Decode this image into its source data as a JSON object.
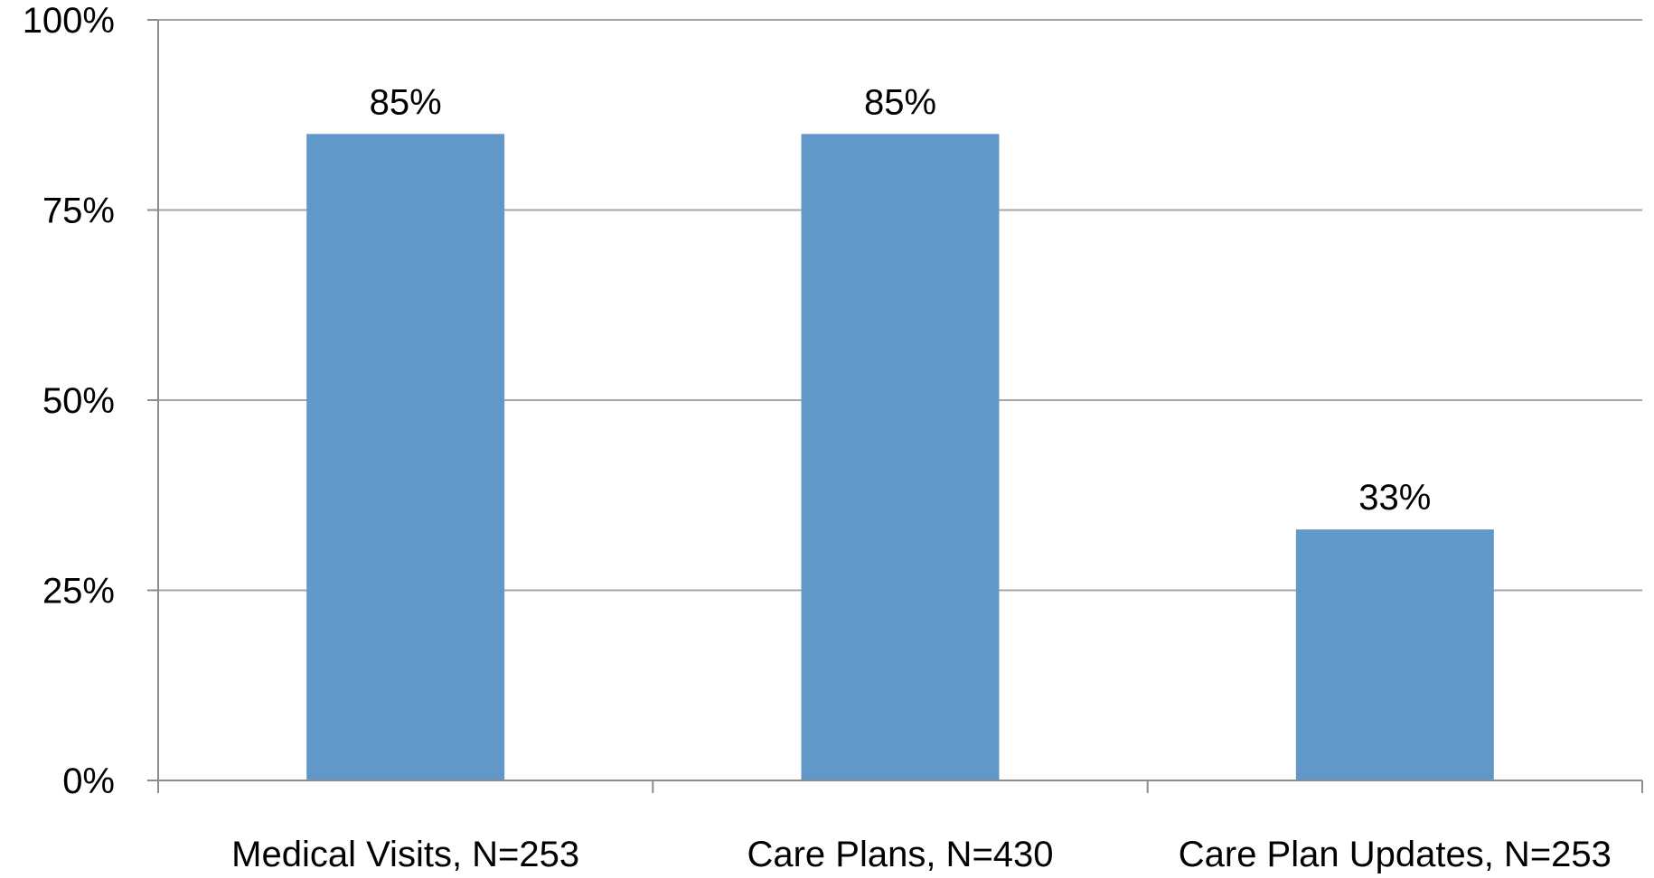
{
  "chart_data": {
    "type": "bar",
    "title": "",
    "xlabel": "",
    "ylabel": "",
    "categories": [
      "Medical Visits, N=253",
      "Care Plans, N=430",
      "Care Plan Updates, N=253"
    ],
    "values": [
      85,
      85,
      33
    ],
    "data_labels": [
      "85%",
      "85%",
      "33%"
    ],
    "ylim": [
      0,
      100
    ],
    "yticks": [
      0,
      25,
      50,
      75,
      100
    ],
    "ytick_labels": [
      "0%",
      "25%",
      "50%",
      "75%",
      "100%"
    ],
    "grid": true,
    "legend": "none",
    "colors": {
      "bar": "#6297c9",
      "grid": "#a6a6a6",
      "axis": "#8c8c8c"
    }
  }
}
